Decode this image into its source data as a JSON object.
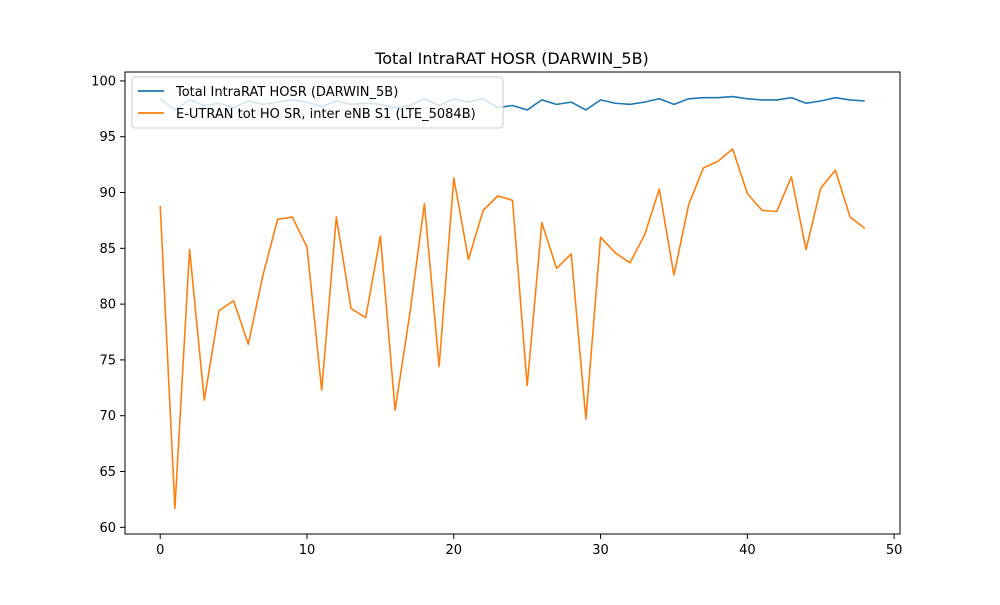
{
  "chart_data": {
    "type": "line",
    "title": "Total IntraRAT HOSR (DARWIN_5B)",
    "xlabel": "",
    "ylabel": "",
    "xlim": [
      -2.4,
      50.4
    ],
    "ylim": [
      59.4,
      100.8
    ],
    "xticks": [
      0,
      10,
      20,
      30,
      40,
      50
    ],
    "yticks": [
      60,
      65,
      70,
      75,
      80,
      85,
      90,
      95,
      100
    ],
    "grid": false,
    "legend_position": "top-left",
    "x": [
      0,
      1,
      2,
      3,
      4,
      5,
      6,
      7,
      8,
      9,
      10,
      11,
      12,
      13,
      14,
      15,
      16,
      17,
      18,
      19,
      20,
      21,
      22,
      23,
      24,
      25,
      26,
      27,
      28,
      29,
      30,
      31,
      32,
      33,
      34,
      35,
      36,
      37,
      38,
      39,
      40,
      41,
      42,
      43,
      44,
      45,
      46,
      47,
      48
    ],
    "series": [
      {
        "name": "Total IntraRAT HOSR (DARWIN_5B)",
        "color": "#1f77b4",
        "values": [
          98.4,
          97.4,
          98.3,
          97.8,
          98.0,
          97.6,
          98.2,
          97.9,
          98.1,
          98.3,
          98.1,
          97.7,
          98.2,
          97.9,
          98.0,
          97.9,
          97.6,
          97.8,
          98.4,
          97.8,
          98.4,
          98.1,
          98.4,
          97.6,
          97.8,
          97.4,
          98.3,
          97.9,
          98.1,
          97.4,
          98.3,
          98.0,
          97.9,
          98.1,
          98.4,
          97.9,
          98.4,
          98.5,
          98.5,
          98.6,
          98.4,
          98.3,
          98.3,
          98.5,
          98.0,
          98.2,
          98.5,
          98.3,
          98.2
        ]
      },
      {
        "name": "E-UTRAN tot HO SR, inter eNB S1 (LTE_5084B)",
        "color": "#ff7f0e",
        "values": [
          88.8,
          61.7,
          84.9,
          71.4,
          79.4,
          80.3,
          76.4,
          82.6,
          87.6,
          87.8,
          85.1,
          72.3,
          87.8,
          79.6,
          78.8,
          86.1,
          70.5,
          79.1,
          89.0,
          74.4,
          91.3,
          84.0,
          88.4,
          89.7,
          89.3,
          72.7,
          87.3,
          83.2,
          84.5,
          69.7,
          86.0,
          84.6,
          83.7,
          86.2,
          90.3,
          82.6,
          88.9,
          92.2,
          92.8,
          93.9,
          89.9,
          88.4,
          88.3,
          91.4,
          84.9,
          90.4,
          92.0,
          87.8,
          86.8
        ]
      }
    ]
  }
}
